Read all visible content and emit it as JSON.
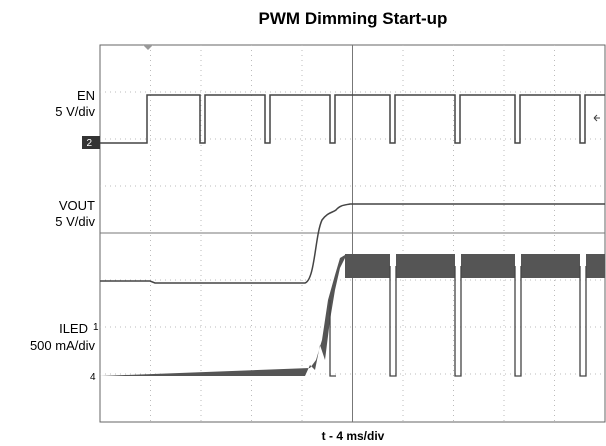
{
  "title": "PWM Dimming Start-up",
  "channels": [
    {
      "name": "EN",
      "scale": "5 V/div",
      "marker": "2"
    },
    {
      "name": "VOUT",
      "scale": "5 V/div"
    },
    {
      "name": "ILED",
      "scale": "500 mA/div",
      "marker": "1"
    }
  ],
  "extra_marker": "4",
  "x_label": "t - 4 ms/div"
}
